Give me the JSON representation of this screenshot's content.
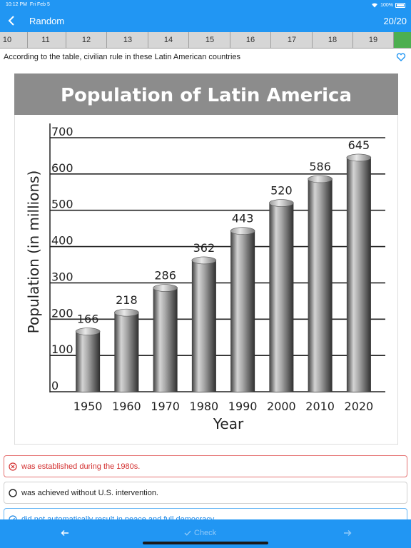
{
  "status": {
    "time": "10:12 PM",
    "date": "Fri Feb 5",
    "battery": "100%"
  },
  "nav": {
    "back_icon": "chevron-left-icon",
    "title": "Random",
    "progress": "20/20"
  },
  "tabs": [
    "10",
    "11",
    "12",
    "13",
    "14",
    "15",
    "16",
    "17",
    "18",
    "19"
  ],
  "question": {
    "text": "According to the table, civilian rule in these Latin American countries",
    "favorite_icon": "heart-icon"
  },
  "chart_data": {
    "type": "bar",
    "title": "Population of Latin America",
    "xlabel": "Year",
    "ylabel": "Population (in millions)",
    "categories": [
      "1950",
      "1960",
      "1970",
      "1980",
      "1990",
      "2000",
      "2010",
      "2020"
    ],
    "values": [
      166,
      218,
      286,
      362,
      443,
      520,
      586,
      645
    ],
    "yticks": [
      "0",
      "100",
      "200",
      "300",
      "400",
      "500",
      "600",
      "700"
    ],
    "ylim": [
      0,
      700
    ],
    "grid": true,
    "colors": {
      "title_bar": "#8c8c8c",
      "bar": "#7a7a7a"
    }
  },
  "options": [
    {
      "text": "was established during the 1980s.",
      "state": "wrong"
    },
    {
      "text": "was achieved without U.S. intervention.",
      "state": "neutral"
    },
    {
      "text": "did not automatically result in peace and full democracy.",
      "state": "correct"
    }
  ],
  "footer": {
    "prev_icon": "arrow-left-icon",
    "check_label": "Check",
    "check_icon": "checkmark-icon",
    "next_icon": "arrow-right-icon"
  },
  "colors": {
    "primary": "#2196f3",
    "wrong": "#d32f2f",
    "correct": "#1e88e5",
    "active_tab": "#4caf50"
  }
}
